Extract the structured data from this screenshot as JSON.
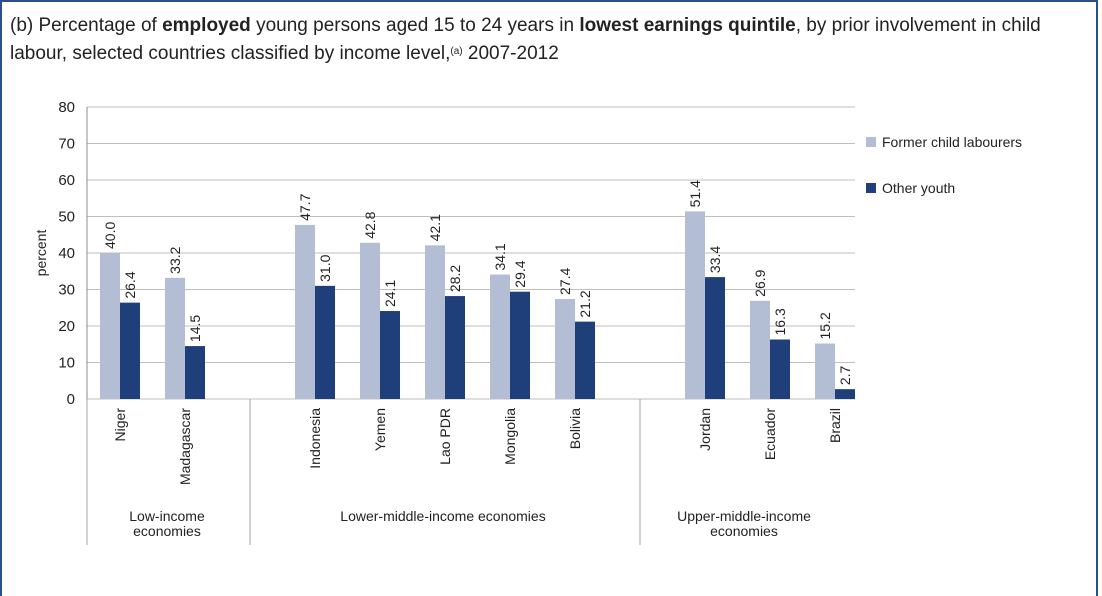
{
  "title": {
    "prefix": "(b) Percentage of ",
    "bold1": "employed",
    "mid1": " young persons aged 15 to 24 years in ",
    "bold2": "lowest earnings quintile",
    "mid2": ", by prior involvement in child labour, selected countries classified by income level,",
    "sup": "(a)",
    "suffix": " 2007-2012"
  },
  "colors": {
    "former": "#b3bdd3",
    "other": "#1f3f7a",
    "grid": "#bfbfbf",
    "frame": "#2b4f8a"
  },
  "chart_data": {
    "type": "bar",
    "ylabel": "percent",
    "ylim": [
      0,
      80
    ],
    "yticks": [
      0,
      10,
      20,
      30,
      40,
      50,
      60,
      70,
      80
    ],
    "grid": true,
    "legend_placement": "right",
    "categories": [
      "Niger",
      "Madagascar",
      "Indonesia",
      "Yemen",
      "Lao PDR",
      "Mongolia",
      "Bolivia",
      "Jordan",
      "Ecuador",
      "Brazil"
    ],
    "groups": [
      {
        "label": "Low-income economies",
        "label_lines": [
          "Low-income",
          "economies"
        ],
        "categories": [
          "Niger",
          "Madagascar"
        ]
      },
      {
        "label": "Lower-middle-income economies",
        "label_lines": [
          "Lower-middle-income economies"
        ],
        "categories": [
          "Indonesia",
          "Yemen",
          "Lao PDR",
          "Mongolia",
          "Bolivia"
        ]
      },
      {
        "label": "Upper-middle-income economies",
        "label_lines": [
          "Upper-middle-income",
          "economies"
        ],
        "categories": [
          "Jordan",
          "Ecuador",
          "Brazil"
        ]
      }
    ],
    "series": [
      {
        "name": "Former child labourers",
        "color": "#b3bdd3",
        "values": [
          40.0,
          33.2,
          47.7,
          42.8,
          42.1,
          34.1,
          27.4,
          51.4,
          26.9,
          15.2
        ],
        "labels": [
          "40.0",
          "33.2",
          "47.7",
          "42.8",
          "42.1",
          "34.1",
          "27.4",
          "51.4",
          "26.9",
          "15.2"
        ]
      },
      {
        "name": "Other youth",
        "color": "#1f3f7a",
        "values": [
          26.4,
          14.5,
          31.0,
          24.1,
          28.2,
          29.4,
          21.2,
          33.4,
          16.3,
          2.7
        ],
        "labels": [
          "26.4",
          "14.5",
          "31.0",
          "24.1",
          "28.2",
          "29.4",
          "21.2",
          "33.4",
          "16.3",
          "2.7"
        ]
      }
    ]
  }
}
